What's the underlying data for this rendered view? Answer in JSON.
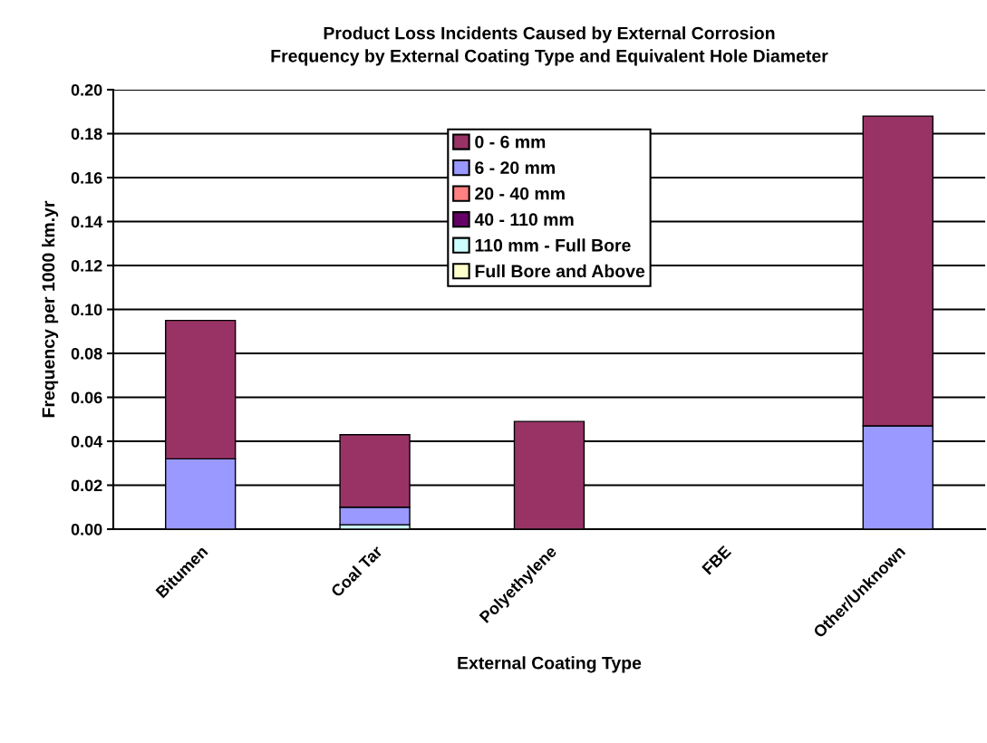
{
  "chart_data": {
    "type": "bar",
    "stacked": true,
    "title": "Product Loss Incidents Caused by External Corrosion\nFrequency by External Coating Type and Equivalent Hole Diameter",
    "xlabel": "External Coating Type",
    "ylabel": "Frequency per 1000 km.yr",
    "categories": [
      "Bitumen",
      "Coal Tar",
      "Polyethylene",
      "FBE",
      "Other/Unknown"
    ],
    "series": [
      {
        "name": "Full Bore and Above",
        "color": "#ffffcc",
        "values": [
          0,
          0,
          0,
          0,
          0
        ]
      },
      {
        "name": "110 mm - Full Bore",
        "color": "#ccffff",
        "values": [
          0,
          0.002,
          0,
          0,
          0
        ]
      },
      {
        "name": "40 - 110 mm",
        "color": "#660066",
        "values": [
          0,
          0,
          0,
          0,
          0
        ]
      },
      {
        "name": "20 - 40 mm",
        "color": "#ff8080",
        "values": [
          0,
          0,
          0,
          0,
          0
        ]
      },
      {
        "name": "6 - 20 mm",
        "color": "#9999ff",
        "values": [
          0.032,
          0.008,
          0,
          0,
          0.047
        ]
      },
      {
        "name": "0 - 6 mm",
        "color": "#993366",
        "values": [
          0.063,
          0.033,
          0.049,
          0,
          0.141
        ]
      }
    ],
    "ylim": [
      0,
      0.2
    ],
    "yticks": [
      {
        "value": 0,
        "label": "0.00"
      },
      {
        "value": 0.02,
        "label": "0.02"
      },
      {
        "value": 0.04,
        "label": "0.04"
      },
      {
        "value": 0.06,
        "label": "0.06"
      },
      {
        "value": 0.08,
        "label": "0.08"
      },
      {
        "value": 0.1,
        "label": "0.10"
      },
      {
        "value": 0.12,
        "label": "0.12"
      },
      {
        "value": 0.14,
        "label": "0.14"
      },
      {
        "value": 0.16,
        "label": "0.16"
      },
      {
        "value": 0.18,
        "label": "0.18"
      },
      {
        "value": 0.2,
        "label": "0.20"
      }
    ],
    "grid": "y",
    "legend": "top"
  }
}
